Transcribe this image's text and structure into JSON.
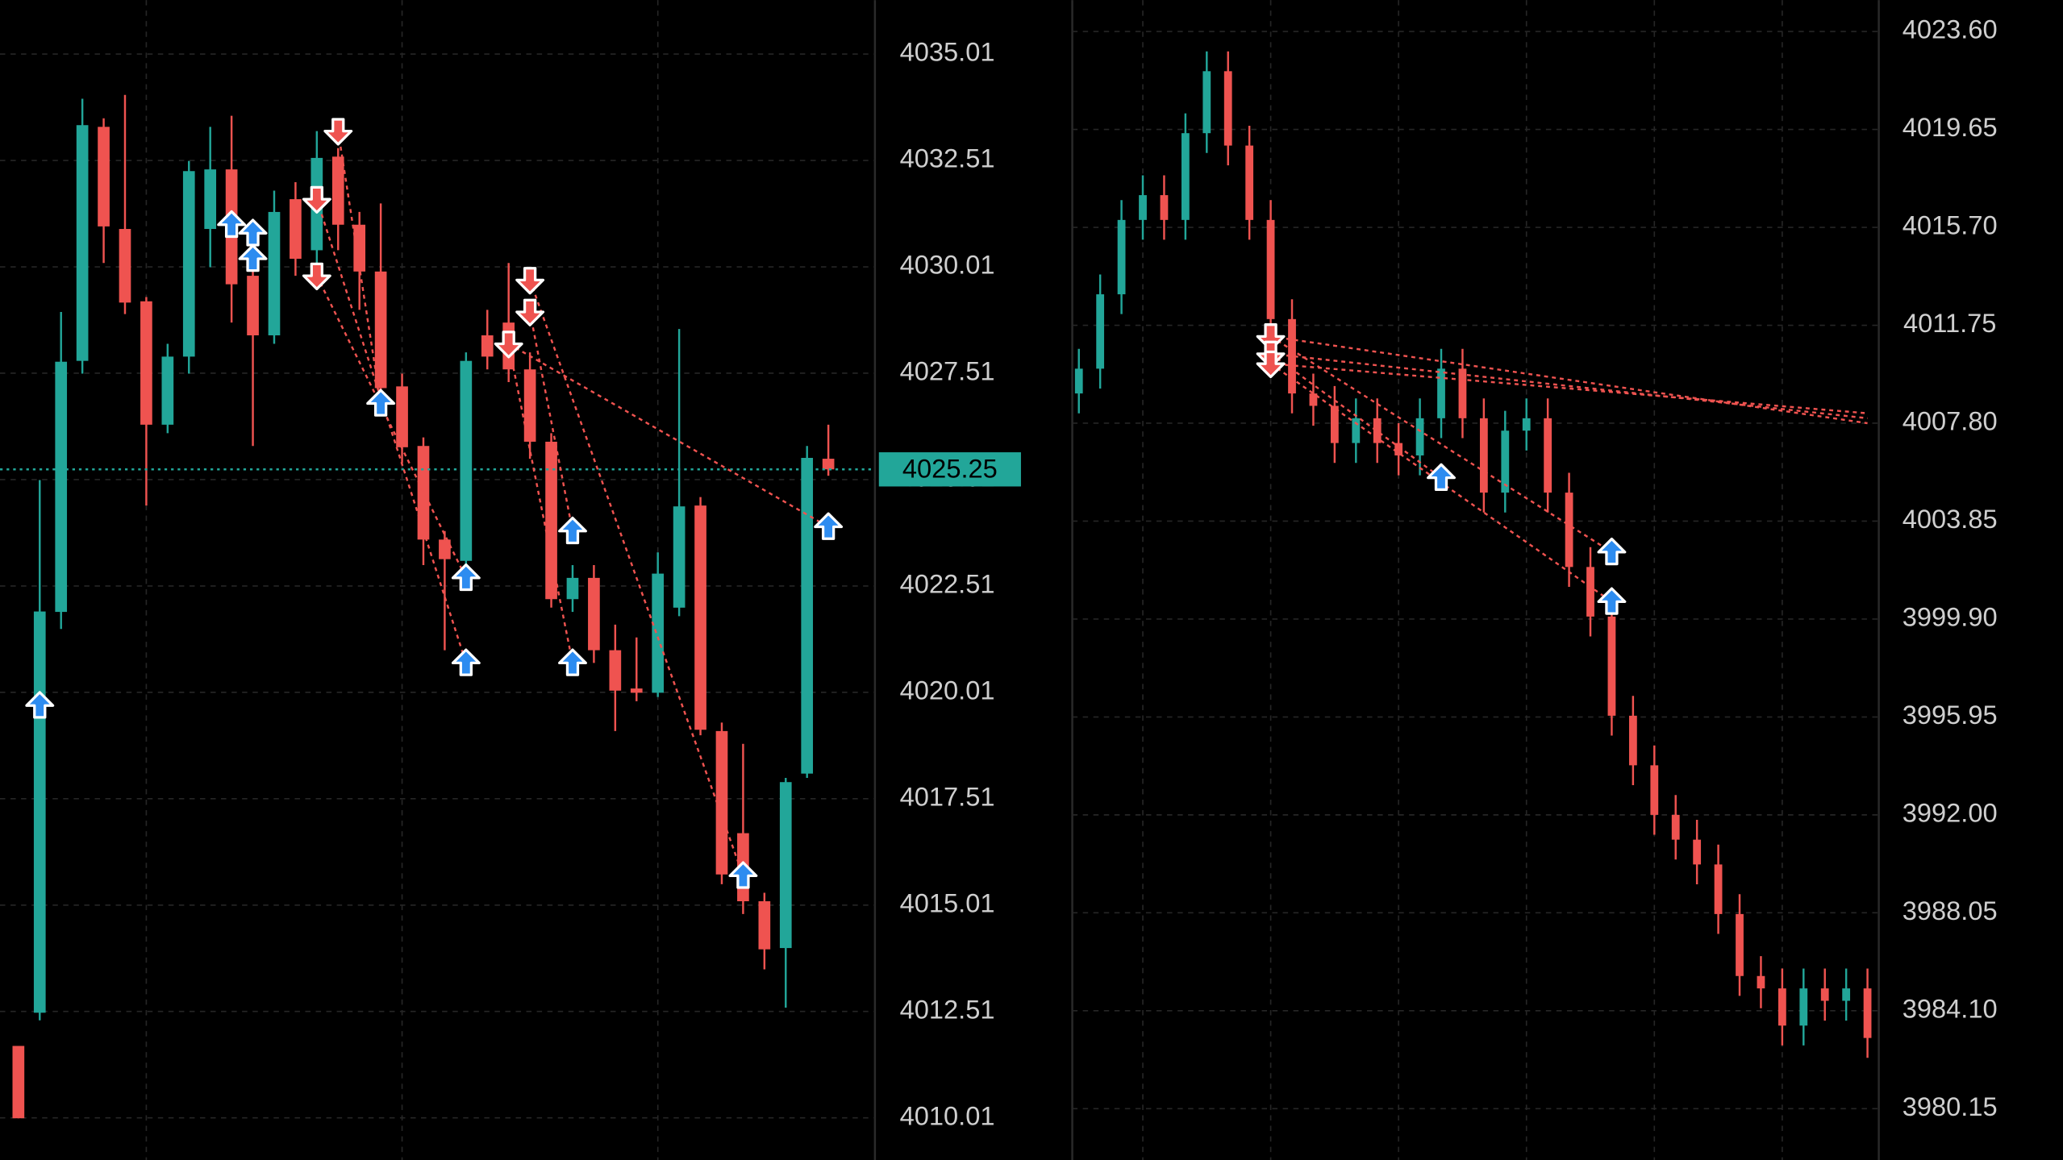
{
  "chart_data": [
    {
      "type": "candlestick",
      "up_color": "#22a699",
      "down_color": "#ef5350",
      "grid": true,
      "ylim": [
        4009.02,
        4036.28
      ],
      "yticks": [
        4035.01,
        4032.51,
        4030.01,
        4027.51,
        4025.01,
        4022.51,
        4020.01,
        4017.51,
        4015.01,
        4012.51,
        4010.01
      ],
      "last_price": 4025.25,
      "open": [
        4011.7,
        4012.48,
        4021.9,
        4027.8,
        4033.3,
        4030.9,
        4029.2,
        4026.3,
        4027.9,
        4030.9,
        4032.3,
        4029.8,
        4028.4,
        4031.6,
        4030.4,
        4032.6,
        4031.0,
        4029.9,
        4027.2,
        4025.8,
        4023.6,
        4023.1,
        4028.4,
        4028.7,
        4027.6,
        4025.9,
        4022.2,
        4022.7,
        4021.0,
        4020.1,
        4020.0,
        4022.0,
        4024.4,
        4019.1,
        4016.7,
        4015.1,
        4014.0,
        4018.1,
        4025.5
      ],
      "high": [
        4011.7,
        4025.0,
        4028.95,
        4033.96,
        4033.5,
        4034.05,
        4029.3,
        4028.2,
        4032.5,
        4033.3,
        4033.56,
        4030.0,
        4031.8,
        4032.0,
        4033.2,
        4032.8,
        4031.3,
        4031.5,
        4027.5,
        4026.0,
        4023.8,
        4028.0,
        4029.0,
        4030.1,
        4028.0,
        4026.1,
        4023.0,
        4023.0,
        4021.6,
        4021.3,
        4023.3,
        4028.55,
        4024.6,
        4019.3,
        4018.8,
        4015.3,
        4018.0,
        4025.8,
        4026.3
      ],
      "low": [
        4010.0,
        4012.3,
        4021.5,
        4027.5,
        4030.1,
        4028.9,
        4024.4,
        4026.1,
        4027.5,
        4030.0,
        4028.7,
        4025.8,
        4028.2,
        4029.8,
        4030.1,
        4030.4,
        4029.0,
        4026.9,
        4025.4,
        4023.0,
        4021.0,
        4023.0,
        4027.6,
        4027.3,
        4025.5,
        4022.0,
        4021.9,
        4020.7,
        4019.1,
        4019.8,
        4019.9,
        4021.8,
        4019.0,
        4015.5,
        4014.8,
        4013.5,
        4012.6,
        4018.0,
        4025.1
      ],
      "close": [
        4010.0,
        4021.91,
        4027.78,
        4033.34,
        4030.96,
        4029.17,
        4026.3,
        4027.9,
        4032.26,
        4032.3,
        4029.6,
        4028.4,
        4031.3,
        4030.2,
        4032.57,
        4031.0,
        4029.9,
        4027.16,
        4025.77,
        4023.6,
        4023.14,
        4027.8,
        4027.9,
        4027.6,
        4025.9,
        4022.2,
        4022.7,
        4021.0,
        4020.05,
        4020.0,
        4022.8,
        4024.38,
        4019.13,
        4015.73,
        4015.1,
        4013.97,
        4017.9,
        4025.52,
        4025.25
      ],
      "signals": [
        {
          "side": "sell",
          "index": 15,
          "price": 4033.2
        },
        {
          "side": "sell",
          "index": 14,
          "price": 4031.6
        },
        {
          "side": "sell",
          "index": 14,
          "price": 4029.8
        },
        {
          "side": "sell",
          "index": 24,
          "price": 4029.7
        },
        {
          "side": "sell",
          "index": 24,
          "price": 4028.95
        },
        {
          "side": "sell",
          "index": 23,
          "price": 4028.2
        },
        {
          "side": "buy",
          "index": 1,
          "price": 4019.7
        },
        {
          "side": "buy",
          "index": 10,
          "price": 4031.0
        },
        {
          "side": "buy",
          "index": 11,
          "price": 4030.8
        },
        {
          "side": "buy",
          "index": 11,
          "price": 4030.2
        },
        {
          "side": "buy",
          "index": 17,
          "price": 4026.8
        },
        {
          "side": "buy",
          "index": 21,
          "price": 4022.7
        },
        {
          "side": "buy",
          "index": 21,
          "price": 4020.7
        },
        {
          "side": "buy",
          "index": 26,
          "price": 4023.8
        },
        {
          "side": "buy",
          "index": 26,
          "price": 4020.7
        },
        {
          "side": "buy",
          "index": 34,
          "price": 4015.7
        },
        {
          "side": "buy",
          "index": 38,
          "price": 4023.9
        }
      ],
      "trades": [
        {
          "entry_index": 15,
          "entry_price": 4033.2,
          "exit_index": 17,
          "exit_price": 4026.8
        },
        {
          "entry_index": 14,
          "entry_price": 4031.6,
          "exit_index": 21,
          "exit_price": 4020.7
        },
        {
          "entry_index": 14,
          "entry_price": 4029.8,
          "exit_index": 21,
          "exit_price": 4022.7
        },
        {
          "entry_index": 23,
          "entry_price": 4028.2,
          "exit_index": 26,
          "exit_price": 4020.7
        },
        {
          "entry_index": 24,
          "entry_price": 4028.95,
          "exit_index": 26,
          "exit_price": 4023.8
        },
        {
          "entry_index": 24,
          "entry_price": 4029.7,
          "exit_index": 34,
          "exit_price": 4015.7
        },
        {
          "entry_index": 23,
          "entry_price": 4028.2,
          "exit_index": 38,
          "exit_price": 4023.9
        }
      ]
    },
    {
      "type": "candlestick",
      "up_color": "#22a699",
      "down_color": "#ef5350",
      "grid": true,
      "ylim": [
        3978.08,
        4024.87
      ],
      "yticks": [
        {
          "value": 4023.6,
          "label": "4023.60"
        },
        4019.65,
        {
          "value": 4015.7,
          "label": "4015.70"
        },
        4011.75,
        {
          "value": 4007.8,
          "label": "4007.80"
        },
        4003.85,
        {
          "value": 3999.9,
          "label": "3999.90"
        },
        3995.95,
        {
          "value": 3992,
          "label": "3992.00"
        },
        3988.05,
        {
          "value": 3984.1,
          "label": "3984.10"
        },
        3980.15
      ],
      "open": [
        4009,
        4010,
        4013,
        4016,
        4017,
        4016,
        4019.5,
        4022,
        4019,
        4016,
        4012,
        4009,
        4008.5,
        4007,
        4008,
        4007,
        4006.5,
        4008,
        4010,
        4008,
        4005,
        4007.5,
        4008,
        4005,
        4002,
        4000,
        3996,
        3994,
        3992,
        3991,
        3990,
        3988,
        3985.5,
        3985,
        3983.5,
        3985,
        3984.5,
        3985
      ],
      "high": [
        4010.8,
        4013.8,
        4016.8,
        4017.8,
        4017.8,
        4020.3,
        4022.8,
        4022.8,
        4019.8,
        4016.8,
        4012.8,
        4009.8,
        4009.3,
        4008.8,
        4008.8,
        4007.8,
        4008.8,
        4010.8,
        4010.8,
        4008.8,
        4008.3,
        4008.8,
        4008.8,
        4005.8,
        4002.8,
        4000.8,
        3996.8,
        3994.8,
        3992.8,
        3991.8,
        3990.8,
        3988.8,
        3986.3,
        3985.8,
        3985.8,
        3985.8,
        3985.8,
        3985.8
      ],
      "low": [
        4008.2,
        4009.2,
        4012.2,
        4015.2,
        4015.2,
        4015.2,
        4018.7,
        4018.2,
        4015.2,
        4011.2,
        4008.2,
        4007.7,
        4006.2,
        4006.2,
        4006.2,
        4005.7,
        4005.7,
        4007.2,
        4007.2,
        4004.2,
        4004.2,
        4006.7,
        4004.2,
        4001.2,
        3999.2,
        3995.2,
        3993.2,
        3991.2,
        3990.2,
        3989.2,
        3987.2,
        3984.7,
        3984.2,
        3982.7,
        3982.7,
        3983.7,
        3983.7,
        3982.2
      ],
      "close": [
        4010,
        4013,
        4016,
        4017,
        4016,
        4019.5,
        4022,
        4019,
        4016,
        4012,
        4009,
        4008.5,
        4007,
        4008,
        4007,
        4006.5,
        4008,
        4010,
        4008,
        4005,
        4007.5,
        4008,
        4005,
        4002,
        4000,
        3996,
        3994,
        3992,
        3991,
        3990,
        3988,
        3985.5,
        3985,
        3983.5,
        3985,
        3984.5,
        3985,
        3983
      ],
      "signals": [
        {
          "side": "sell",
          "index": 9,
          "price": 4011.3
        },
        {
          "side": "sell",
          "index": 9,
          "price": 4010.6
        },
        {
          "side": "sell",
          "index": 9,
          "price": 4010.2
        },
        {
          "side": "buy",
          "index": 17,
          "price": 4005.6
        },
        {
          "side": "buy",
          "index": 25,
          "price": 4002.6
        },
        {
          "side": "buy",
          "index": 25,
          "price": 4000.6
        }
      ],
      "trades": [
        {
          "entry_index": 9,
          "entry_price": 4011.3,
          "exit_index": 37,
          "exit_price": 4007.8
        },
        {
          "entry_index": 9,
          "entry_price": 4010.6,
          "exit_index": 37,
          "exit_price": 4008.0
        },
        {
          "entry_index": 9,
          "entry_price": 4010.2,
          "exit_index": 37,
          "exit_price": 4008.2
        },
        {
          "entry_index": 9,
          "entry_price": 4010.6,
          "exit_index": 17,
          "exit_price": 4005.6
        },
        {
          "entry_index": 9,
          "entry_price": 4011.3,
          "exit_index": 25,
          "exit_price": 4002.6
        },
        {
          "entry_index": 9,
          "entry_price": 4010.2,
          "exit_index": 25,
          "exit_price": 4000.6
        }
      ]
    }
  ]
}
